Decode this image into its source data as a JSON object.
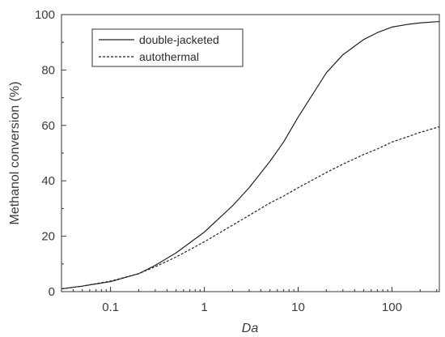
{
  "chart_data": {
    "type": "line",
    "xlabel": "Da",
    "ylabel": "Methanol conversion (%)",
    "xscale": "log",
    "xlim": [
      0.03,
      320
    ],
    "ylim": [
      0,
      100
    ],
    "x_ticks": [
      {
        "value": 0.1,
        "label": "0.1"
      },
      {
        "value": 1,
        "label": "1"
      },
      {
        "value": 10,
        "label": "10"
      },
      {
        "value": 100,
        "label": "100"
      }
    ],
    "y_ticks": [
      {
        "value": 0,
        "label": "0"
      },
      {
        "value": 20,
        "label": "20"
      },
      {
        "value": 40,
        "label": "40"
      },
      {
        "value": 60,
        "label": "60"
      },
      {
        "value": 80,
        "label": "80"
      },
      {
        "value": 100,
        "label": "100"
      }
    ],
    "grid": false,
    "legend_position": "top-left",
    "series": [
      {
        "name": "double-jacketed",
        "style": "solid",
        "color": "#222222",
        "points": [
          [
            0.03,
            1.0
          ],
          [
            0.05,
            2.0
          ],
          [
            0.1,
            3.6
          ],
          [
            0.2,
            6.5
          ],
          [
            0.3,
            9.5
          ],
          [
            0.5,
            14.0
          ],
          [
            1,
            21.5
          ],
          [
            2,
            31.0
          ],
          [
            3,
            37.5
          ],
          [
            5,
            47.0
          ],
          [
            7,
            54.0
          ],
          [
            10,
            63.0
          ],
          [
            20,
            79.0
          ],
          [
            30,
            85.5
          ],
          [
            50,
            91.0
          ],
          [
            70,
            93.5
          ],
          [
            100,
            95.5
          ],
          [
            150,
            96.5
          ],
          [
            200,
            97.0
          ],
          [
            320,
            97.5
          ]
        ]
      },
      {
        "name": "autothermal",
        "style": "dashed",
        "color": "#222222",
        "points": [
          [
            0.03,
            1.0
          ],
          [
            0.05,
            2.0
          ],
          [
            0.1,
            3.8
          ],
          [
            0.2,
            6.5
          ],
          [
            0.3,
            9.0
          ],
          [
            0.5,
            12.5
          ],
          [
            1,
            18.0
          ],
          [
            2,
            24.0
          ],
          [
            3,
            27.5
          ],
          [
            5,
            32.0
          ],
          [
            7,
            34.5
          ],
          [
            10,
            37.5
          ],
          [
            20,
            43.0
          ],
          [
            30,
            46.0
          ],
          [
            50,
            49.5
          ],
          [
            70,
            51.5
          ],
          [
            100,
            54.0
          ],
          [
            150,
            56.0
          ],
          [
            200,
            57.5
          ],
          [
            320,
            59.5
          ]
        ]
      }
    ]
  }
}
